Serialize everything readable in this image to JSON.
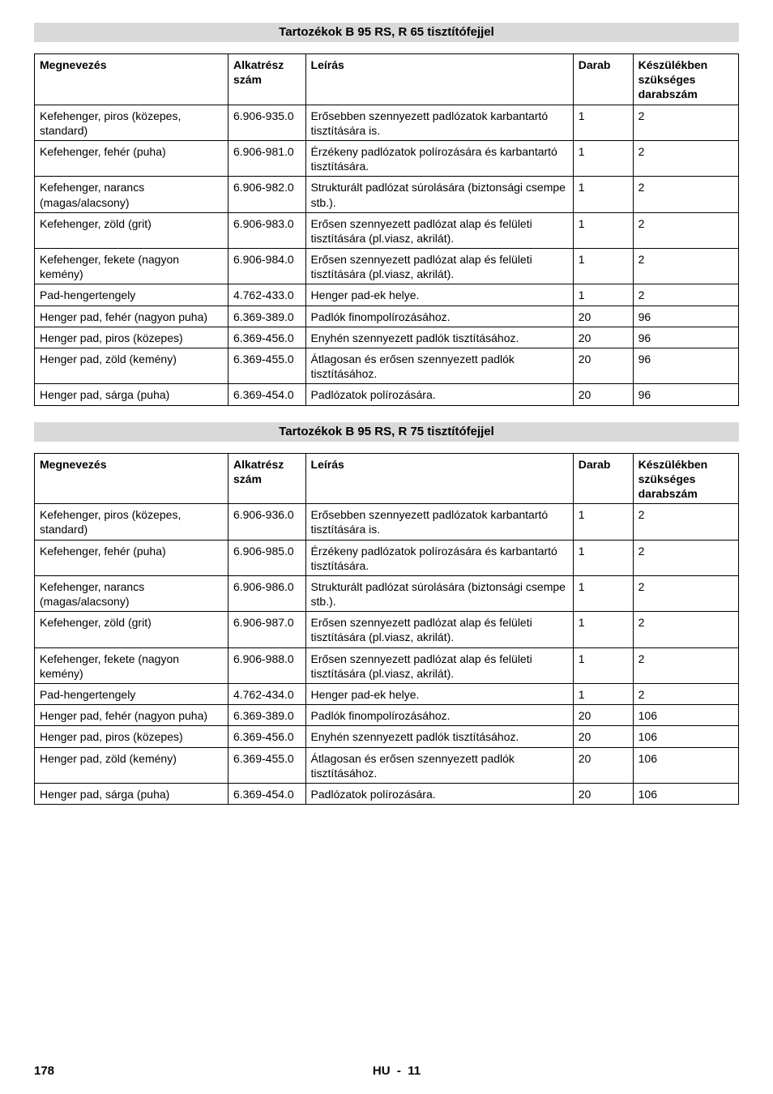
{
  "footer": {
    "page": "178",
    "lang": "HU",
    "sep": "-",
    "idx": "11"
  },
  "headers": {
    "name": "Megnevezés",
    "part": "Alkatrész szám",
    "desc": "Leírás",
    "qty": "Darab",
    "req": "Készülékben szükséges darabszám"
  },
  "section1": {
    "title": "Tartozékok B 95 RS,  R 65 tisztítófejjel",
    "rows": [
      {
        "name": "Kefehenger, piros (közepes, standard)",
        "part": "6.906-935.0",
        "desc": "Erősebben szennyezett padlózatok karbantartó tisztítására is.",
        "qty": "1",
        "req": "2"
      },
      {
        "name": "Kefehenger, fehér (puha)",
        "part": "6.906-981.0",
        "desc": "Érzékeny padlózatok polírozására és karbantartó tisztítására.",
        "qty": "1",
        "req": "2"
      },
      {
        "name": "Kefehenger, narancs (magas/alacsony)",
        "part": "6.906-982.0",
        "desc": "Strukturált padlózat súrolására (biztonsági csempe stb.).",
        "qty": "1",
        "req": "2"
      },
      {
        "name": "Kefehenger, zöld (grit)",
        "part": "6.906-983.0",
        "desc": "Erősen szennyezett padlózat alap és felületi tisztítására  (pl.viasz, akrilát).",
        "qty": "1",
        "req": "2"
      },
      {
        "name": "Kefehenger, fekete (nagyon kemény)",
        "part": "6.906-984.0",
        "desc": "Erősen szennyezett padlózat alap és felületi tisztítására  (pl.viasz, akrilát).",
        "qty": "1",
        "req": "2"
      },
      {
        "name": "Pad-hengertengely",
        "part": "4.762-433.0",
        "desc": "Henger pad-ek helye.",
        "qty": "1",
        "req": "2"
      },
      {
        "name": "Henger pad, fehér (nagyon puha)",
        "part": "6.369-389.0",
        "desc": "Padlók finompolírozásához.",
        "qty": "20",
        "req": "96"
      },
      {
        "name": "Henger pad, piros (közepes)",
        "part": "6.369-456.0",
        "desc": "Enyhén szennyezett padlók tisztításához.",
        "qty": "20",
        "req": "96"
      },
      {
        "name": "Henger pad, zöld (kemény)",
        "part": "6.369-455.0",
        "desc": "Átlagosan és erősen szennyezett padlók tisztításához.",
        "qty": "20",
        "req": "96"
      },
      {
        "name": "Henger pad, sárga (puha)",
        "part": "6.369-454.0",
        "desc": "Padlózatok polírozására.",
        "qty": "20",
        "req": "96"
      }
    ]
  },
  "section2": {
    "title": "Tartozékok B 95 RS,  R 75 tisztítófejjel",
    "rows": [
      {
        "name": "Kefehenger, piros (közepes, standard)",
        "part": "6.906-936.0",
        "desc": "Erősebben szennyezett padlózatok karbantartó tisztítására is.",
        "qty": "1",
        "req": "2"
      },
      {
        "name": "Kefehenger, fehér (puha)",
        "part": "6.906-985.0",
        "desc": "Érzékeny padlózatok polírozására és karbantartó tisztítására.",
        "qty": "1",
        "req": "2"
      },
      {
        "name": "Kefehenger, narancs (magas/alacsony)",
        "part": "6.906-986.0",
        "desc": "Strukturált padlózat súrolására (biztonsági csempe stb.).",
        "qty": "1",
        "req": "2"
      },
      {
        "name": "Kefehenger, zöld (grit)",
        "part": "6.906-987.0",
        "desc": "Erősen szennyezett padlózat alap és felületi tisztítására  (pl.viasz, akrilát).",
        "qty": "1",
        "req": "2"
      },
      {
        "name": "Kefehenger, fekete (nagyon kemény)",
        "part": "6.906-988.0",
        "desc": "Erősen szennyezett padlózat alap és felületi tisztítására  (pl.viasz, akrilát).",
        "qty": "1",
        "req": "2"
      },
      {
        "name": "Pad-hengertengely",
        "part": "4.762-434.0",
        "desc": "Henger pad-ek helye.",
        "qty": "1",
        "req": "2"
      },
      {
        "name": "Henger pad, fehér (nagyon puha)",
        "part": "6.369-389.0",
        "desc": "Padlók finompolírozásához.",
        "qty": "20",
        "req": "106"
      },
      {
        "name": "Henger pad, piros (közepes)",
        "part": "6.369-456.0",
        "desc": "Enyhén szennyezett padlók tisztításához.",
        "qty": "20",
        "req": "106"
      },
      {
        "name": "Henger pad, zöld (kemény)",
        "part": "6.369-455.0",
        "desc": "Átlagosan és erősen szennyezett padlók tisztításához.",
        "qty": "20",
        "req": "106"
      },
      {
        "name": "Henger pad, sárga (puha)",
        "part": "6.369-454.0",
        "desc": "Padlózatok polírozására.",
        "qty": "20",
        "req": "106"
      }
    ]
  }
}
